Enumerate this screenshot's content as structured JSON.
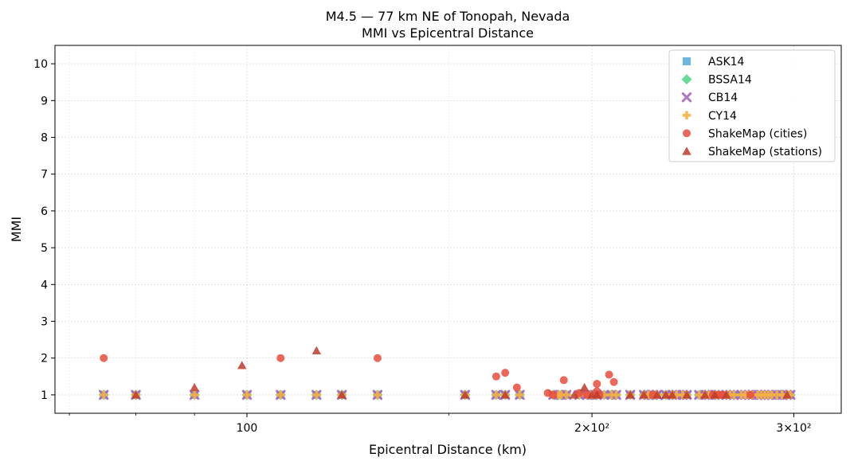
{
  "chart_data": {
    "type": "scatter",
    "title": "M4.5 — 77 km NE of Tonopah, Nevada",
    "subtitle": "MMI vs Epicentral Distance",
    "xlabel": "Epicentral Distance (km)",
    "ylabel": "MMI",
    "xscale": "log",
    "xlim": [
      68,
      330
    ],
    "ylim": [
      0.5,
      10.5
    ],
    "yticks": [
      1,
      2,
      3,
      4,
      5,
      6,
      7,
      8,
      9,
      10
    ],
    "xticks": [
      {
        "value": 100,
        "label": "100"
      },
      {
        "value": 200,
        "label": "2×10²"
      },
      {
        "value": 300,
        "label": "3×10²"
      }
    ],
    "grid": true,
    "legend_position": "top-right",
    "series": [
      {
        "name": "ASK14",
        "marker": "square",
        "color": "#5DADE2",
        "x": [
          75,
          80,
          90,
          100,
          107,
          115,
          121,
          130,
          155,
          165,
          168,
          173,
          185,
          187,
          188,
          190,
          195,
          198,
          200,
          202,
          205,
          208,
          210,
          216,
          222,
          224,
          226,
          228,
          232,
          235,
          237,
          240,
          242,
          248,
          251,
          253,
          256,
          258,
          262,
          264,
          266,
          270,
          272,
          274,
          276,
          279,
          281,
          283,
          285,
          287,
          290,
          293,
          296,
          298
        ],
        "y": [
          1,
          1,
          1,
          1,
          1,
          1,
          1,
          1,
          1,
          1,
          1,
          1,
          1,
          1,
          1,
          1,
          1,
          1,
          1,
          1,
          1,
          1,
          1,
          1,
          1,
          1,
          1,
          1,
          1,
          1,
          1,
          1,
          1,
          1,
          1,
          1,
          1,
          1,
          1,
          1,
          1,
          1,
          1,
          1,
          1,
          1,
          1,
          1,
          1,
          1,
          1,
          1,
          1,
          1
        ]
      },
      {
        "name": "BSSA14",
        "marker": "diamond",
        "color": "#58D68D",
        "x": [
          75,
          80,
          90,
          100,
          107,
          115,
          121,
          130,
          155,
          165,
          168,
          173,
          185,
          187,
          188,
          190,
          195,
          198,
          200,
          202,
          205,
          208,
          210,
          216,
          222,
          224,
          226,
          228,
          232,
          235,
          237,
          240,
          242,
          248,
          251,
          253,
          256,
          258,
          262,
          264,
          266,
          270,
          272,
          274,
          276,
          279,
          281,
          283,
          285,
          287,
          290,
          293,
          296,
          298
        ],
        "y": [
          1,
          1,
          1,
          1,
          1,
          1,
          1,
          1,
          1,
          1,
          1,
          1,
          1,
          1,
          1,
          1,
          1,
          1,
          1,
          1,
          1,
          1,
          1,
          1,
          1,
          1,
          1,
          1,
          1,
          1,
          1,
          1,
          1,
          1,
          1,
          1,
          1,
          1,
          1,
          1,
          1,
          1,
          1,
          1,
          1,
          1,
          1,
          1,
          1,
          1,
          1,
          1,
          1,
          1
        ]
      },
      {
        "name": "CB14",
        "marker": "x",
        "color": "#A569BD",
        "x": [
          75,
          80,
          90,
          100,
          107,
          115,
          121,
          130,
          155,
          165,
          168,
          173,
          185,
          187,
          188,
          190,
          195,
          198,
          200,
          202,
          205,
          208,
          210,
          216,
          222,
          224,
          226,
          228,
          232,
          235,
          237,
          240,
          242,
          248,
          251,
          253,
          256,
          258,
          262,
          264,
          266,
          270,
          272,
          274,
          276,
          279,
          281,
          283,
          285,
          287,
          290,
          293,
          296,
          298
        ],
        "y": [
          1,
          1,
          1,
          1,
          1,
          1,
          1,
          1,
          1,
          1,
          1,
          1,
          1,
          1,
          1,
          1,
          1,
          1,
          1,
          1,
          1,
          1,
          1,
          1,
          1,
          1,
          1,
          1,
          1,
          1,
          1,
          1,
          1,
          1,
          1,
          1,
          1,
          1,
          1,
          1,
          1,
          1,
          1,
          1,
          1,
          1,
          1,
          1,
          1,
          1,
          1,
          1,
          1,
          1
        ]
      },
      {
        "name": "CY14",
        "marker": "plus",
        "color": "#F5B041",
        "x": [
          75,
          80,
          90,
          100,
          107,
          115,
          121,
          130,
          155,
          165,
          168,
          173,
          185,
          187,
          188,
          190,
          195,
          198,
          200,
          202,
          205,
          208,
          210,
          216,
          222,
          224,
          226,
          228,
          232,
          235,
          237,
          240,
          242,
          248,
          251,
          253,
          256,
          258,
          262,
          264,
          266,
          270,
          272,
          274,
          276,
          279,
          281,
          283,
          285,
          287,
          290,
          293,
          296,
          298
        ],
        "y": [
          1,
          1,
          1,
          1,
          1,
          1,
          1,
          1,
          1,
          1,
          1,
          1,
          1,
          1,
          1,
          1,
          1,
          1,
          1,
          1,
          1,
          1,
          1,
          1,
          1,
          1,
          1,
          1,
          1,
          1,
          1,
          1,
          1,
          1,
          1,
          1,
          1,
          1,
          1,
          1,
          1,
          1,
          1,
          1,
          1,
          1,
          1,
          1,
          1,
          1,
          1,
          1,
          1,
          1
        ]
      },
      {
        "name": "ShakeMap (cities)",
        "marker": "circle",
        "color": "#E74C3C",
        "x": [
          75,
          107,
          130,
          165,
          168,
          172,
          183,
          185,
          189,
          195,
          198,
          202,
          202,
          203,
          207,
          209,
          226,
          255,
          258,
          260,
          275
        ],
        "y": [
          2.0,
          2.0,
          2.0,
          1.5,
          1.6,
          1.2,
          1.05,
          1.0,
          1.4,
          1.05,
          1.0,
          1.3,
          1.1,
          1.0,
          1.55,
          1.35,
          1.0,
          1.0,
          1.0,
          1.0,
          1.0
        ]
      },
      {
        "name": "ShakeMap (stations)",
        "marker": "triangle",
        "color": "#C0392B",
        "x": [
          80,
          90,
          99,
          115,
          121,
          155,
          168,
          193,
          197,
          200,
          202,
          216,
          222,
          228,
          232,
          235,
          242,
          251,
          256,
          262,
          296
        ],
        "y": [
          1.0,
          1.2,
          1.8,
          2.2,
          1.0,
          1.0,
          1.0,
          1.0,
          1.2,
          1.0,
          1.0,
          1.0,
          1.0,
          1.0,
          1.0,
          1.0,
          1.0,
          1.0,
          1.0,
          1.0,
          1.0
        ]
      }
    ]
  }
}
